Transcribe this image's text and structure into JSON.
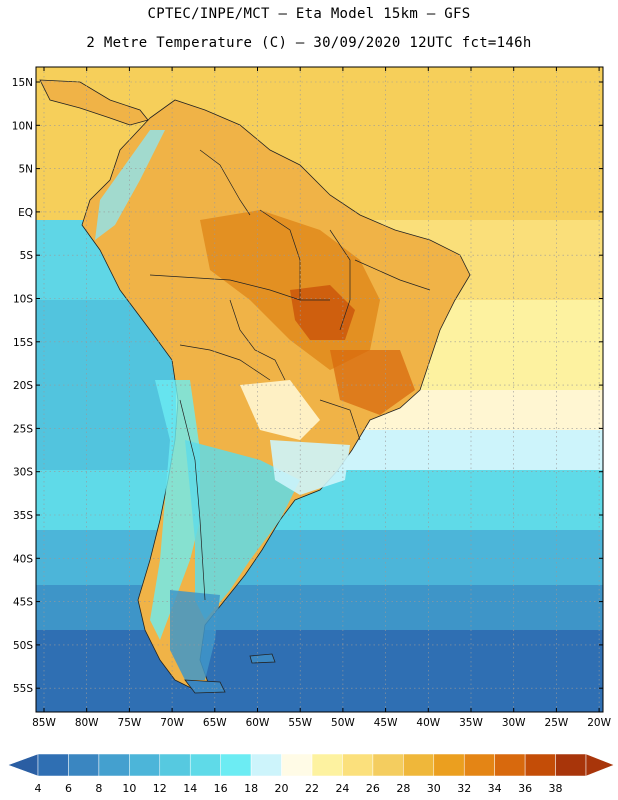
{
  "header": {
    "line1": "CPTEC/INPE/MCT –  Eta Model 15km – GFS",
    "line2": "2 Metre Temperature (C) – 30/09/2020 12UTC fct=146h"
  },
  "map": {
    "lat_labels": [
      "15N",
      "10N",
      "5N",
      "EQ",
      "5S",
      "10S",
      "15S",
      "20S",
      "25S",
      "30S",
      "35S",
      "40S",
      "45S",
      "50S",
      "55S"
    ],
    "lon_labels": [
      "85W",
      "80W",
      "75W",
      "70W",
      "65W",
      "60W",
      "55W",
      "50W",
      "45W",
      "40W",
      "35W",
      "30W",
      "25W",
      "20W"
    ]
  },
  "colorbar": {
    "labels": [
      "4",
      "6",
      "8",
      "10",
      "12",
      "14",
      "16",
      "18",
      "20",
      "22",
      "24",
      "26",
      "28",
      "30",
      "32",
      "34",
      "36",
      "38"
    ],
    "colors": [
      "#2f6fb3",
      "#3a86c1",
      "#44a0cf",
      "#4cb5d9",
      "#56c9e0",
      "#5fdae8",
      "#6cecf3",
      "#cdf4fb",
      "#fffbe6",
      "#fdf2a0",
      "#fbe07c",
      "#f4cd5f",
      "#efb73a",
      "#eb9f1f",
      "#e48515",
      "#d8690d",
      "#c44d07",
      "#a8350a"
    ],
    "under_color": "#2a5ea3",
    "over_color": "#a8350a"
  }
}
